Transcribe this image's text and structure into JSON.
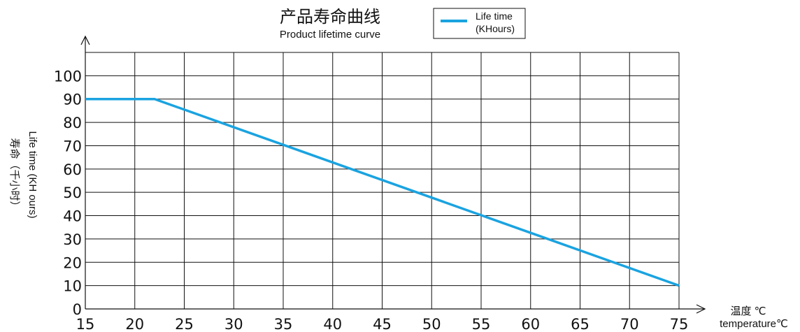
{
  "chart_data": {
    "type": "line",
    "title": "产品寿命曲线",
    "subtitle": "Product lifetime curve",
    "x_ticks": [
      15,
      20,
      25,
      30,
      35,
      40,
      45,
      50,
      55,
      60,
      65,
      70,
      75
    ],
    "y_ticks": [
      0,
      10,
      20,
      30,
      40,
      50,
      60,
      70,
      80,
      90,
      100
    ],
    "xlim": [
      15,
      75
    ],
    "ylim": [
      0,
      110
    ],
    "grid": true,
    "ylabel_en": "Life time (KH ours)",
    "ylabel_zh": "寿命（千小时）",
    "xlabel_zh": "温度 ℃",
    "xlabel_en": "temperature℃",
    "legend": {
      "position": "top-center",
      "label_line1": "Life time",
      "label_line2": "(KHours)"
    },
    "series": [
      {
        "name": "Life time (KHours)",
        "color": "#1aa3e0",
        "x": [
          15,
          22,
          75
        ],
        "y": [
          90,
          90,
          10
        ]
      }
    ]
  }
}
